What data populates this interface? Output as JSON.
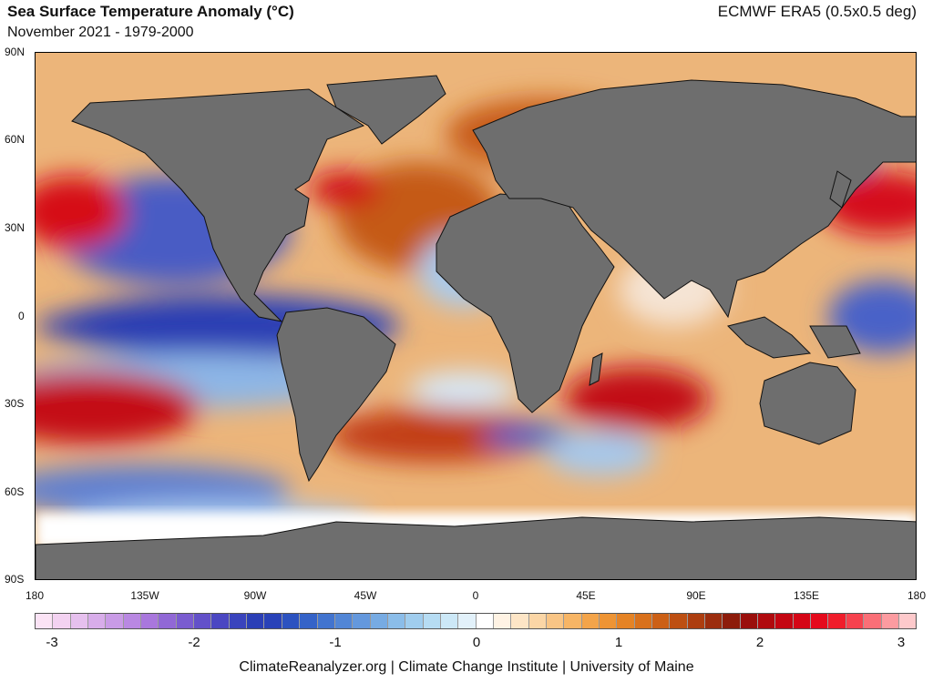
{
  "header": {
    "title": "Sea Surface Temperature Anomaly (°C)",
    "subtitle": "November 2021 - 1979-2000",
    "dataset": "ECMWF ERA5 (0.5x0.5 deg)"
  },
  "map": {
    "lat_labels": [
      "90N",
      "60N",
      "30N",
      "0",
      "30S",
      "60S",
      "90S"
    ],
    "lon_labels": [
      "180",
      "135W",
      "90W",
      "45W",
      "0",
      "45E",
      "90E",
      "135E",
      "180"
    ],
    "land_color": "#6e6e6e",
    "ice_color": "#ffffff"
  },
  "colorbar": {
    "labels": [
      "-3",
      "-2",
      "-1",
      "0",
      "1",
      "2",
      "3"
    ],
    "colors": [
      "#fbe3f5",
      "#f3d2f1",
      "#e6c0ee",
      "#d8adea",
      "#c99be6",
      "#b988e2",
      "#a977dd",
      "#9168d6",
      "#7a5cd0",
      "#6351c9",
      "#4b47c2",
      "#3a44bd",
      "#2b3fb6",
      "#2942b8",
      "#2c52c0",
      "#3563c8",
      "#4274cf",
      "#5286d6",
      "#6498dd",
      "#77abe3",
      "#8bbde9",
      "#a0cdee",
      "#b6dcf3",
      "#cce8f7",
      "#e2f1fa",
      "#ffffff",
      "#fff3e4",
      "#fde5c6",
      "#fbd6a6",
      "#f9c585",
      "#f7b565",
      "#f3a44a",
      "#ee9434",
      "#e58325",
      "#d9711c",
      "#cc6016",
      "#bd4f12",
      "#ad3e10",
      "#9c2d0e",
      "#8d1c0b",
      "#9a0f0c",
      "#b00a0e",
      "#c40612",
      "#d50616",
      "#e50a1c",
      "#f01d2b",
      "#f6424e",
      "#fa6f77",
      "#fc9ba0",
      "#fdc9cb"
    ]
  },
  "footer": {
    "credit": "ClimateReanalyzer.org | Climate Change Institute | University of Maine"
  }
}
